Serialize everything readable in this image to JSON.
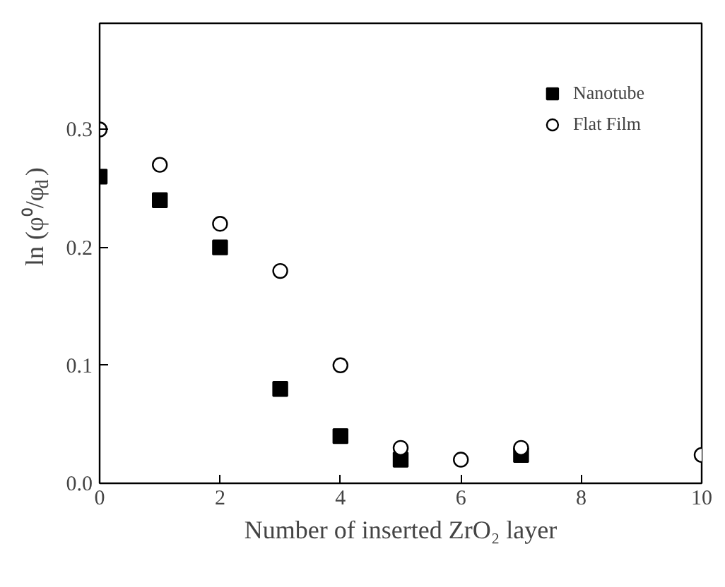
{
  "chart_data": {
    "type": "scatter",
    "xlabel": "Number of inserted ZrO₂ layer",
    "ylabel": "ln (φ⁰/φ$_{d}$)",
    "xlim": [
      0,
      10
    ],
    "xticks": [
      0,
      2,
      4,
      6,
      8,
      10
    ],
    "ylim": [
      0,
      0.39
    ],
    "yticks": [
      {
        "value": 0,
        "label": "0.0"
      },
      0.1,
      0.2,
      0.3
    ],
    "legend": "top right",
    "grid": false,
    "series": [
      {
        "name": "Nanotube",
        "color": "#000000",
        "marker": "square",
        "x": [
          0,
          1,
          2,
          3,
          4,
          5,
          6,
          7
        ],
        "values": [
          0.26,
          0.24,
          0.2,
          0.08,
          0.04,
          0.02,
          null,
          0.024
        ]
      },
      {
        "name": "Flat Film",
        "color": "#000000",
        "marker": "circle",
        "x": [
          0,
          1,
          2,
          3,
          4,
          5,
          6,
          7,
          10
        ],
        "values": [
          0.3,
          0.27,
          0.22,
          0.18,
          0.1,
          0.03,
          0.02,
          0.03,
          0.024
        ]
      }
    ]
  }
}
